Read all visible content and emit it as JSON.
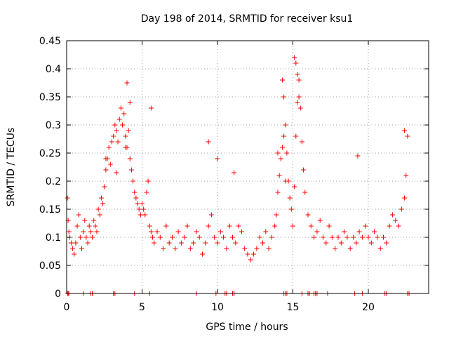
{
  "chart_data": {
    "type": "scatter",
    "title": "Day 198 of 2014, SRMTID for receiver ksu1",
    "xlabel": "GPS time / hours",
    "ylabel": "SRMTID / TECUs",
    "xlim": [
      0,
      24
    ],
    "ylim": [
      0,
      0.45
    ],
    "x_ticks": [
      0,
      5,
      10,
      15,
      20
    ],
    "y_ticks": [
      0,
      0.05,
      0.1,
      0.15,
      0.2,
      0.25,
      0.3,
      0.35,
      0.4,
      0.45
    ],
    "x_tick_labels": [
      "0",
      "5",
      "10",
      "15",
      "20"
    ],
    "y_tick_labels": [
      "0",
      "0.05",
      "0.1",
      "0.15",
      "0.2",
      "0.25",
      "0.3",
      "0.35",
      "0.4",
      "0.45"
    ],
    "grid": true,
    "marker": "+",
    "color": "#ff0000",
    "series": [
      {
        "name": "SRMTID",
        "x": [
          0.05,
          0.1,
          0.15,
          0.2,
          0.3,
          0.4,
          0.5,
          0.6,
          0.7,
          0.8,
          0.9,
          1.0,
          1.1,
          1.2,
          1.3,
          1.4,
          1.5,
          1.6,
          1.7,
          1.8,
          1.9,
          2.0,
          2.1,
          2.2,
          2.3,
          2.4,
          2.5,
          2.6,
          2.7,
          2.8,
          2.9,
          3.0,
          3.1,
          3.2,
          3.3,
          3.4,
          3.5,
          3.6,
          3.7,
          3.8,
          3.9,
          4.0,
          4.1,
          4.2,
          4.3,
          4.4,
          4.5,
          4.6,
          4.7,
          4.8,
          4.9,
          5.0,
          5.1,
          5.2,
          5.3,
          5.4,
          5.5,
          5.6,
          5.7,
          5.8,
          6.0,
          6.2,
          6.4,
          6.6,
          6.8,
          7.0,
          7.2,
          7.4,
          7.6,
          7.8,
          8.0,
          8.2,
          8.4,
          8.6,
          8.8,
          9.0,
          9.2,
          9.4,
          9.6,
          9.8,
          10.0,
          10.2,
          10.4,
          10.6,
          10.8,
          11.0,
          11.2,
          11.4,
          11.6,
          11.8,
          12.0,
          12.2,
          12.4,
          12.6,
          12.8,
          13.0,
          13.2,
          13.4,
          13.6,
          13.8,
          13.9,
          14.0,
          14.1,
          14.2,
          14.3,
          14.4,
          14.5,
          14.6,
          14.7,
          14.8,
          14.9,
          15.0,
          15.1,
          15.2,
          15.3,
          15.4,
          15.5,
          15.6,
          15.7,
          15.8,
          16.0,
          16.2,
          16.4,
          16.6,
          16.8,
          17.0,
          17.2,
          17.4,
          17.6,
          17.8,
          18.0,
          18.2,
          18.4,
          18.6,
          18.8,
          19.0,
          19.2,
          19.4,
          19.6,
          19.8,
          20.0,
          20.2,
          20.4,
          20.6,
          20.8,
          21.0,
          21.2,
          21.4,
          21.6,
          21.8,
          22.0,
          22.2,
          22.4,
          22.5,
          22.6,
          2.6,
          3.3,
          3.9,
          4.0,
          4.2,
          5.6,
          9.4,
          10.0,
          11.1,
          14.0,
          14.3,
          14.4,
          14.5,
          15.1,
          15.2,
          15.3,
          15.4,
          19.3,
          22.4,
          0.05,
          0.1,
          0.15,
          1.1,
          1.6,
          1.7,
          3.1,
          3.2,
          4.5,
          5.5,
          8.6,
          9.9,
          10.5,
          10.6,
          11.0,
          11.1,
          14.4,
          14.5,
          14.6,
          15.6,
          16.0,
          16.1,
          16.4,
          16.5,
          16.6,
          17.3,
          19.1,
          19.6,
          21.1,
          21.2,
          22.6,
          22.7
        ],
        "y": [
          0.17,
          0.13,
          0.11,
          0.1,
          0.09,
          0.08,
          0.07,
          0.09,
          0.12,
          0.14,
          0.1,
          0.08,
          0.11,
          0.13,
          0.1,
          0.09,
          0.12,
          0.11,
          0.1,
          0.13,
          0.12,
          0.11,
          0.15,
          0.14,
          0.17,
          0.16,
          0.19,
          0.22,
          0.24,
          0.26,
          0.23,
          0.27,
          0.28,
          0.3,
          0.29,
          0.27,
          0.31,
          0.33,
          0.3,
          0.32,
          0.28,
          0.26,
          0.29,
          0.24,
          0.22,
          0.2,
          0.18,
          0.17,
          0.16,
          0.15,
          0.14,
          0.16,
          0.15,
          0.14,
          0.18,
          0.2,
          0.12,
          0.11,
          0.1,
          0.09,
          0.11,
          0.1,
          0.08,
          0.12,
          0.09,
          0.1,
          0.08,
          0.11,
          0.09,
          0.1,
          0.12,
          0.08,
          0.09,
          0.11,
          0.1,
          0.07,
          0.09,
          0.12,
          0.14,
          0.1,
          0.09,
          0.11,
          0.1,
          0.08,
          0.12,
          0.1,
          0.09,
          0.12,
          0.11,
          0.08,
          0.07,
          0.06,
          0.07,
          0.08,
          0.1,
          0.09,
          0.11,
          0.08,
          0.1,
          0.12,
          0.14,
          0.18,
          0.21,
          0.24,
          0.26,
          0.28,
          0.3,
          0.25,
          0.2,
          0.17,
          0.15,
          0.12,
          0.19,
          0.28,
          0.34,
          0.38,
          0.33,
          0.27,
          0.22,
          0.18,
          0.14,
          0.12,
          0.1,
          0.11,
          0.13,
          0.1,
          0.09,
          0.12,
          0.1,
          0.08,
          0.1,
          0.09,
          0.11,
          0.1,
          0.08,
          0.1,
          0.09,
          0.11,
          0.1,
          0.12,
          0.1,
          0.09,
          0.11,
          0.1,
          0.08,
          0.1,
          0.09,
          0.12,
          0.14,
          0.13,
          0.12,
          0.15,
          0.17,
          0.21,
          0.28,
          0.24,
          0.215,
          0.26,
          0.375,
          0.34,
          0.33,
          0.27,
          0.24,
          0.215,
          0.25,
          0.38,
          0.35,
          0.2,
          0.42,
          0.41,
          0.39,
          0.35,
          0.245,
          0.29,
          0,
          0,
          0,
          0,
          0,
          0,
          0,
          0,
          0,
          0,
          0,
          0,
          0,
          0,
          0,
          0,
          0,
          0,
          0,
          0,
          0,
          0,
          0,
          0,
          0,
          0,
          0,
          0,
          0,
          0,
          0,
          0
        ]
      }
    ]
  }
}
